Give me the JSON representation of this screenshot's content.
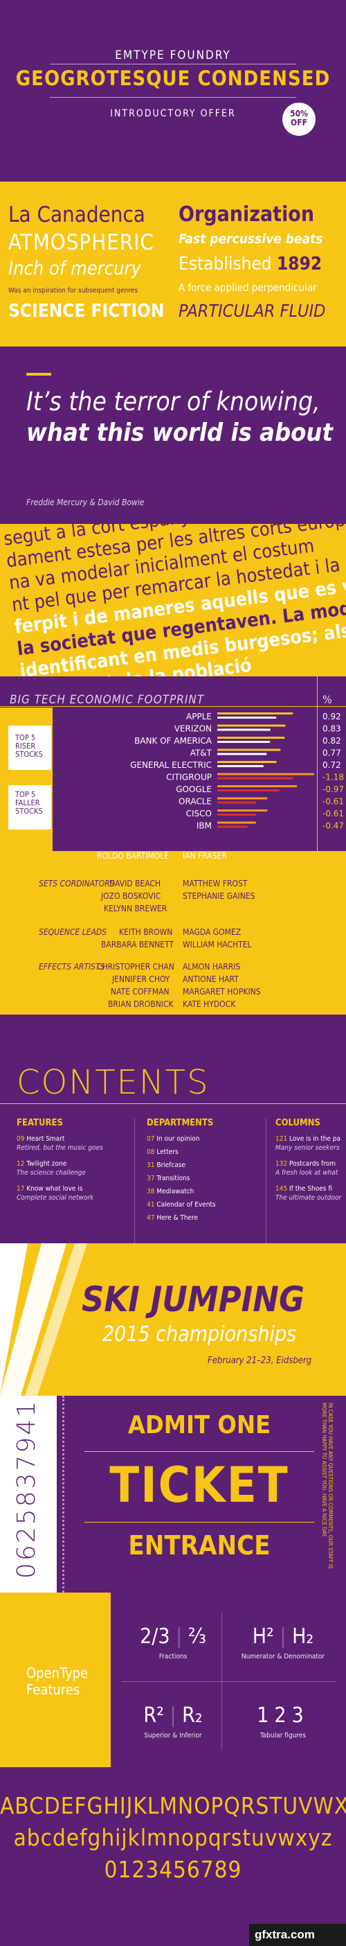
{
  "colors": {
    "purple": "#5b1f73",
    "yellow": "#f7c516",
    "white": "#ffffff",
    "red": "#d6302b",
    "orange": "#f39a1d"
  },
  "header": {
    "foundry": "EMTYPE FOUNDRY",
    "title": "GEOGROTESQUE CONDENSED",
    "offer": "INTRODUCTORY OFFER",
    "badge_top": "50%",
    "badge_bottom": "OFF"
  },
  "specimen": {
    "left": [
      "La Canadenca",
      "ATMOSPHERIC",
      "Inch of mercury",
      "Was an inspiration for subsequent genres",
      "SCIENCE FICTION"
    ],
    "right": [
      "Organization",
      "Fast percussive beats",
      "Established",
      "1892",
      "A force applied perpendicular",
      "PARTICULAR FLUID"
    ]
  },
  "quote": {
    "line1": "It’s the terror of knowing,",
    "line2": "what this world is about",
    "author": "Freddie Mercury & David Bowie"
  },
  "rotated": {
    "lines": [
      "Mitjans, i tots els d’aquesta la cort espanyola de",
      "segut a la cort espanyola els altres corts europe",
      "dament estesa per les altres corts europees",
      "na va modelar inicialment el costum",
      "nt pel que per remarcar la hostedat i la",
      "ferpit i de maneres aquells que es volien",
      "la societat que regentaven. La moda va",
      "identificant en medis burgesos; als segles",
      "bona part de la població"
    ]
  },
  "chart": {
    "title": "BIG TECH ECONOMIC FOOTPRINT",
    "pct": "%",
    "risers_label": [
      "TOP 5",
      "RISER",
      "STOCKS"
    ],
    "fallers_label": [
      "TOP 5",
      "FALLER",
      "STOCKS"
    ],
    "icon": "bar-chart-icon"
  },
  "chart_data": {
    "type": "bar",
    "title": "BIG TECH ECONOMIC FOOTPRINT",
    "categories": [
      "APPLE",
      "VERIZON",
      "BANK OF AMERICA",
      "AT&T",
      "GENERAL ELECTRIC",
      "CITIGROUP",
      "GOOGLE",
      "ORACLE",
      "CISCO",
      "IBM"
    ],
    "values": [
      0.92,
      0.83,
      0.82,
      0.77,
      0.72,
      -1.18,
      -0.97,
      -0.61,
      -0.61,
      -0.47
    ],
    "labels": [
      "0.92",
      "0.83",
      "0.82",
      "0.77",
      "0.72",
      "-1.18",
      "-0.97",
      "-0.61",
      "-0.61",
      "-0.47"
    ],
    "series_colors": [
      "#f7c516",
      "#ffffff",
      "#f39a1d",
      "#d6302b"
    ]
  },
  "credits": {
    "top_row": [
      "ROLDO BARTIMOLE",
      "IAN FRASER"
    ],
    "groups": [
      {
        "label": "SETS CORDINATORS",
        "names": [
          [
            "DAVID BEACH",
            "MATTHEW FROST"
          ],
          [
            "JOZO BOSKOVIC",
            "STEPHANIE GAINES"
          ],
          [
            "KELYNN BREWER",
            ""
          ]
        ]
      },
      {
        "label": "SEQUENCE LEADS",
        "names": [
          [
            "KEITH BROWN",
            "MAGDA GOMEZ"
          ],
          [
            "BARBARA BENNETT",
            "WILLIAM HACHTEL"
          ]
        ]
      },
      {
        "label": "EFFECTS ARTISTS",
        "names": [
          [
            "CHRISTOPHER CHAN",
            "ALMON HARRIS"
          ],
          [
            "JENNIFER CHOY",
            "ANTIONE HART"
          ],
          [
            "NATE COFFMAN",
            "MARGARET HOPKINS"
          ],
          [
            "BRIAN DROBNICK",
            "KATE HYDOCK"
          ]
        ]
      }
    ]
  },
  "contents": {
    "title": "CONTENTS",
    "features": {
      "heading": "FEATURES",
      "items": [
        {
          "n": "09",
          "t": "Heart Smart",
          "d": "Retired, but the music goes"
        },
        {
          "n": "12",
          "t": "Twilight zone",
          "d": "The science challenge"
        },
        {
          "n": "17",
          "t": "Know what love is",
          "d": "Complete social network"
        }
      ]
    },
    "departments": {
      "heading": "DEPARTMENTS",
      "items": [
        {
          "n": "07",
          "t": "In our opinion"
        },
        {
          "n": "08",
          "t": "Letters"
        },
        {
          "n": "31",
          "t": "Briefcase"
        },
        {
          "n": "37",
          "t": "Transitions"
        },
        {
          "n": "38",
          "t": "Mediawatch"
        },
        {
          "n": "41",
          "t": "Calendar of Events"
        },
        {
          "n": "47",
          "t": "Here & There"
        }
      ]
    },
    "columns": {
      "heading": "COLUMNS",
      "items": [
        {
          "n": "121",
          "t": "Love is in the pa",
          "d": "Many senior seekers"
        },
        {
          "n": "132",
          "t": "Postcards from",
          "d": "A fresh look at what"
        },
        {
          "n": "145",
          "t": "If the Shoes fi",
          "d": "The ultimate outdoor"
        }
      ]
    }
  },
  "ski": {
    "title": "SKI JUMPING",
    "subtitle": "2015 championships",
    "date": "February 21–23, Eidsberg"
  },
  "ticket": {
    "number": "0625837941",
    "line1": "ADMIT ONE",
    "line2": "TICKET",
    "line3": "ENTRANCE",
    "side_text": "IN CASE YOU HAVE ANY QUESTIONS OR COMMENTS, OUR STAFF IS MORE THAN HAPPY TO ASSIST YOU. HAVE A NICE DAY."
  },
  "opentype": {
    "label": [
      "OpenType",
      "Features"
    ],
    "fractions_a": "2/3",
    "fractions_b": "⅔",
    "fractions_cap": "Fractions",
    "numden_a": "H²",
    "numden_b": "H₂",
    "numden_cap": "Numerator & Denominator",
    "supinf_a": "R²",
    "supinf_b": "R₂",
    "supinf_cap": "Superior & Inferior",
    "tab": "123",
    "tab_cap": "Tabular figures"
  },
  "alphabet": {
    "upper": "ABCDEFGHIJKLMNOPQRSTUVWXYZ",
    "lower": "abcdefghijklmnopqrstuvwxyz",
    "digits": "0123456789",
    "watermark": "gfxtra.com"
  }
}
